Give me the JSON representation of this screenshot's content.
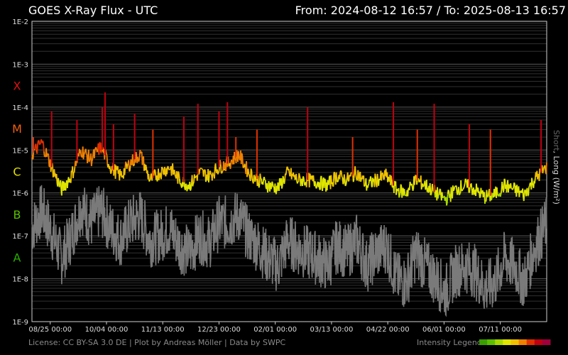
{
  "header": {
    "title": "GOES X-Ray Flux - UTC",
    "range": "From: 2024-08-12 16:57  /  To: 2025-08-13 16:57"
  },
  "side_label": {
    "short": "Short",
    "long": ", Long (W/m²)"
  },
  "footer": {
    "license": "License: CC BY-SA 3.0 DE | Plot by Andreas Möller | Data by SWPC",
    "legend_label": "Intensity Legend",
    "legend_colors": [
      "#3a9f00",
      "#5cbf00",
      "#a4d800",
      "#e0e600",
      "#f0c000",
      "#f08000",
      "#e03000",
      "#c00010",
      "#a0003c"
    ]
  },
  "chart_data": {
    "type": "line",
    "title": "GOES X-Ray Flux - UTC",
    "ylabel": "Short, Long (W/m²)",
    "y_scale": "log",
    "ylim": [
      1e-09,
      0.01
    ],
    "y_tick_labels": [
      "1E-2",
      "1E-3",
      "1E-4",
      "1E-5",
      "1E-6",
      "1E-7",
      "1E-8",
      "1E-9"
    ],
    "y_tick_values": [
      0.01,
      0.001,
      0.0001,
      1e-05,
      1e-06,
      1e-07,
      1e-08,
      1e-09
    ],
    "flare_classes": [
      {
        "label": "X",
        "value": 0.000316,
        "color": "#e01010"
      },
      {
        "label": "M",
        "value": 3.16e-05,
        "color": "#f06010"
      },
      {
        "label": "C",
        "value": 3.16e-06,
        "color": "#e0e000"
      },
      {
        "label": "B",
        "value": 3.16e-07,
        "color": "#5cbf00"
      },
      {
        "label": "A",
        "value": 3.16e-08,
        "color": "#28b000"
      }
    ],
    "xlim": [
      "2024-08-12",
      "2025-08-13"
    ],
    "x_tick_labels": [
      "08/25 00:00",
      "10/04 00:00",
      "11/13 00:00",
      "12/23 00:00",
      "02/01 00:00",
      "03/13 00:00",
      "04/22 00:00",
      "06/01 00:00",
      "07/11 00:00"
    ],
    "x_tick_dates": [
      "2024-08-25",
      "2024-10-04",
      "2024-11-13",
      "2024-12-23",
      "2025-02-01",
      "2025-03-13",
      "2025-04-22",
      "2025-06-01",
      "2025-07-11"
    ],
    "grid": true,
    "series": [
      {
        "name": "Long",
        "color": "intensity",
        "x": [
          "2024-08-12",
          "2024-08-19",
          "2024-08-26",
          "2024-09-02",
          "2024-09-09",
          "2024-09-16",
          "2024-09-23",
          "2024-09-30",
          "2024-10-07",
          "2024-10-14",
          "2024-10-21",
          "2024-10-28",
          "2024-11-04",
          "2024-11-11",
          "2024-11-18",
          "2024-11-25",
          "2024-12-02",
          "2024-12-09",
          "2024-12-16",
          "2024-12-23",
          "2024-12-30",
          "2025-01-06",
          "2025-01-13",
          "2025-01-20",
          "2025-01-27",
          "2025-02-03",
          "2025-02-10",
          "2025-02-17",
          "2025-02-24",
          "2025-03-03",
          "2025-03-10",
          "2025-03-17",
          "2025-03-24",
          "2025-03-31",
          "2025-04-07",
          "2025-04-14",
          "2025-04-21",
          "2025-04-28",
          "2025-05-05",
          "2025-05-12",
          "2025-05-19",
          "2025-05-26",
          "2025-06-02",
          "2025-06-09",
          "2025-06-16",
          "2025-06-23",
          "2025-06-30",
          "2025-07-07",
          "2025-07-14",
          "2025-07-21",
          "2025-07-28",
          "2025-08-04",
          "2025-08-13"
        ],
        "y": [
          8e-06,
          1.5e-05,
          4e-06,
          1.2e-06,
          2.5e-06,
          1e-05,
          6e-06,
          1.2e-05,
          4e-06,
          2.5e-06,
          5e-06,
          8e-06,
          2e-06,
          3e-06,
          4e-06,
          2e-06,
          1.5e-06,
          3e-06,
          2.5e-06,
          4e-06,
          5e-06,
          8e-06,
          3e-06,
          2e-06,
          1.5e-06,
          1.3e-06,
          3e-06,
          2e-06,
          2e-06,
          1.8e-06,
          1.5e-06,
          2.5e-06,
          2e-06,
          3e-06,
          1.5e-06,
          2e-06,
          2.5e-06,
          1.2e-06,
          1e-06,
          2e-06,
          1.5e-06,
          1e-06,
          7e-07,
          1.2e-06,
          1.5e-06,
          1.2e-06,
          8e-07,
          9e-07,
          1.5e-06,
          1.2e-06,
          9e-07,
          2e-06,
          4e-06
        ]
      },
      {
        "name": "Short",
        "color": "#7a7a7a",
        "x": [
          "2024-08-12",
          "2024-08-19",
          "2024-08-26",
          "2024-09-02",
          "2024-09-09",
          "2024-09-16",
          "2024-09-23",
          "2024-09-30",
          "2024-10-07",
          "2024-10-14",
          "2024-10-21",
          "2024-10-28",
          "2024-11-04",
          "2024-11-11",
          "2024-11-18",
          "2024-11-25",
          "2024-12-02",
          "2024-12-09",
          "2024-12-16",
          "2024-12-23",
          "2024-12-30",
          "2025-01-06",
          "2025-01-13",
          "2025-01-20",
          "2025-01-27",
          "2025-02-03",
          "2025-02-10",
          "2025-02-17",
          "2025-02-24",
          "2025-03-03",
          "2025-03-10",
          "2025-03-17",
          "2025-03-24",
          "2025-03-31",
          "2025-04-07",
          "2025-04-14",
          "2025-04-21",
          "2025-04-28",
          "2025-05-05",
          "2025-05-12",
          "2025-05-19",
          "2025-05-26",
          "2025-06-02",
          "2025-06-09",
          "2025-06-16",
          "2025-06-23",
          "2025-06-30",
          "2025-07-07",
          "2025-07-14",
          "2025-07-21",
          "2025-07-28",
          "2025-08-04",
          "2025-08-13"
        ],
        "y": [
          1.5e-07,
          4e-07,
          1.2e-07,
          3e-08,
          1e-07,
          5e-07,
          2e-07,
          4e-07,
          1.5e-07,
          8e-08,
          2e-07,
          3e-07,
          8e-08,
          1e-07,
          1.5e-07,
          6e-08,
          4e-08,
          1e-07,
          7e-08,
          2e-07,
          2e-07,
          3e-07,
          1e-07,
          6e-08,
          3e-08,
          2e-08,
          8e-08,
          5e-08,
          4e-08,
          3e-08,
          2e-08,
          6e-08,
          4e-08,
          8e-08,
          2e-08,
          4e-08,
          6e-08,
          1e-08,
          8e-09,
          4e-08,
          2e-08,
          1e-08,
          5e-09,
          1.5e-08,
          2e-08,
          1.5e-08,
          6e-09,
          8e-09,
          3e-08,
          2e-08,
          8e-09,
          5e-08,
          2e-07
        ]
      }
    ],
    "flare_peaks": {
      "dates": [
        "2024-08-13",
        "2024-08-26",
        "2024-09-13",
        "2024-10-01",
        "2024-10-03",
        "2024-10-09",
        "2024-10-24",
        "2024-11-06",
        "2024-11-28",
        "2024-12-08",
        "2024-12-23",
        "2024-12-29",
        "2025-01-04",
        "2025-01-19",
        "2025-02-24",
        "2025-03-28",
        "2025-04-26",
        "2025-05-13",
        "2025-05-25",
        "2025-06-19",
        "2025-07-04",
        "2025-08-09"
      ],
      "values": [
        2e-05,
        8e-05,
        5e-05,
        0.0001,
        0.00022,
        4e-05,
        7e-05,
        3e-05,
        6e-05,
        0.00012,
        8e-05,
        0.00013,
        2e-05,
        3e-05,
        0.0001,
        2e-05,
        0.00013,
        3e-05,
        0.00012,
        4e-05,
        3e-05,
        5e-05
      ]
    }
  }
}
